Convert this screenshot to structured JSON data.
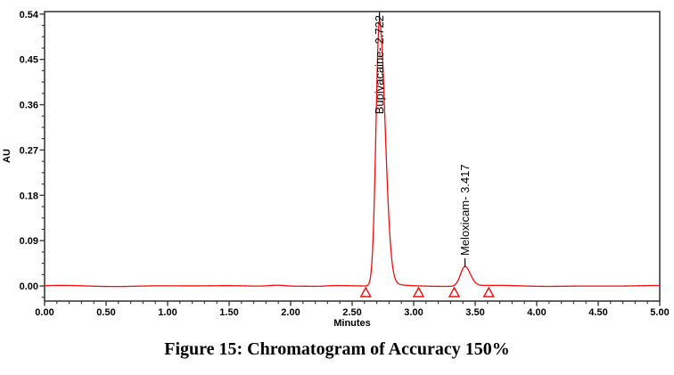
{
  "figure": {
    "caption": "Figure 15: Chromatogram of Accuracy 150%"
  },
  "chart_data": {
    "type": "line",
    "title": "",
    "xlabel": "Minutes",
    "ylabel": "AU",
    "xlim": [
      0,
      5
    ],
    "ylim": [
      -0.03,
      0.545
    ],
    "x_ticks": {
      "values": [
        0,
        0.5,
        1,
        1.5,
        2,
        2.5,
        3,
        3.5,
        4,
        4.5,
        5
      ],
      "labels": [
        "0.00",
        "0.50",
        "1.00",
        "1.50",
        "2.00",
        "2.50",
        "3.00",
        "3.50",
        "4.00",
        "4.50",
        "5.00"
      ],
      "minor_step": 0.1
    },
    "y_ticks": {
      "values": [
        0,
        0.09,
        0.18,
        0.27,
        0.36,
        0.45,
        0.54
      ],
      "labels": [
        "0.00",
        "0.09",
        "0.18",
        "0.27",
        "0.36",
        "0.45",
        "0.54"
      ],
      "minor_step": 0.0225
    },
    "grid": false,
    "legend": false,
    "trace_color": "#f20d0d",
    "axis_color": "#3b3b3b",
    "baseline_au": 0.0,
    "peaks": [
      {
        "name": "Bupivacaine",
        "label": "Bupivacaine- 2.722",
        "retention_time_min": 2.722,
        "height_au": 0.528,
        "sigma_left_min": 0.028,
        "sigma_right_min": 0.046,
        "tail_tau_min": 0.09
      },
      {
        "name": "Meloxicam",
        "label": "Meloxicam- 3.417",
        "retention_time_min": 3.417,
        "height_au": 0.039,
        "sigma_left_min": 0.036,
        "sigma_right_min": 0.044,
        "tail_tau_min": 0.07
      }
    ],
    "integration_markers_min": [
      2.61,
      3.04,
      3.33,
      3.61
    ]
  }
}
